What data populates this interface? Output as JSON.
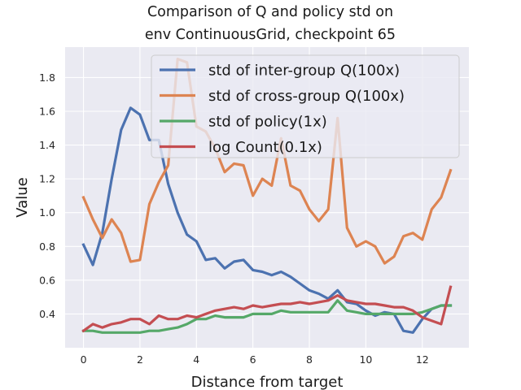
{
  "chart_data": {
    "type": "line",
    "title_line1": "Comparison of Q and policy std on",
    "title_line2": "env ContinuousGrid, checkpoint 65",
    "xlabel": "Distance from target",
    "ylabel": "Value",
    "xlim": [
      -0.65,
      13.65
    ],
    "ylim": [
      0.2,
      1.98
    ],
    "xticks": [
      0,
      2,
      4,
      6,
      8,
      10,
      12
    ],
    "yticks": [
      0.4,
      0.6,
      0.8,
      1.0,
      1.2,
      1.4,
      1.6,
      1.8
    ],
    "grid": true,
    "legend_position": "top-right",
    "x": [
      0,
      0.333,
      0.667,
      1.0,
      1.333,
      1.667,
      2.0,
      2.333,
      2.667,
      3.0,
      3.333,
      3.667,
      4.0,
      4.333,
      4.667,
      5.0,
      5.333,
      5.667,
      6.0,
      6.333,
      6.667,
      7.0,
      7.333,
      7.667,
      8.0,
      8.333,
      8.667,
      9.0,
      9.333,
      9.667,
      10.0,
      10.333,
      10.667,
      11.0,
      11.333,
      11.667,
      12.0,
      12.333,
      12.667,
      13.0
    ],
    "series": [
      {
        "name": "std of inter-group Q(100x)",
        "color": "#4c72b0",
        "values": [
          0.81,
          0.69,
          0.88,
          1.2,
          1.49,
          1.62,
          1.58,
          1.43,
          1.43,
          1.17,
          1.0,
          0.87,
          0.83,
          0.72,
          0.73,
          0.67,
          0.71,
          0.72,
          0.66,
          0.65,
          0.63,
          0.65,
          0.62,
          0.58,
          0.54,
          0.52,
          0.49,
          0.54,
          0.47,
          0.46,
          0.42,
          0.39,
          0.41,
          0.4,
          0.3,
          0.29,
          0.37,
          0.43,
          0.45,
          0.45
        ]
      },
      {
        "name": "std of cross-group Q(100x)",
        "color": "#dd8452",
        "values": [
          1.09,
          0.96,
          0.85,
          0.96,
          0.88,
          0.71,
          0.72,
          1.05,
          1.18,
          1.28,
          1.91,
          1.89,
          1.51,
          1.48,
          1.38,
          1.24,
          1.29,
          1.28,
          1.1,
          1.2,
          1.16,
          1.44,
          1.16,
          1.13,
          1.02,
          0.95,
          1.02,
          1.56,
          0.91,
          0.8,
          0.83,
          0.8,
          0.7,
          0.74,
          0.86,
          0.88,
          0.84,
          1.02,
          1.09,
          1.25
        ]
      },
      {
        "name": "std of policy(1x)",
        "color": "#55a868",
        "values": [
          0.3,
          0.3,
          0.29,
          0.29,
          0.29,
          0.29,
          0.29,
          0.3,
          0.3,
          0.31,
          0.32,
          0.34,
          0.37,
          0.37,
          0.39,
          0.38,
          0.38,
          0.38,
          0.4,
          0.4,
          0.4,
          0.42,
          0.41,
          0.41,
          0.41,
          0.41,
          0.41,
          0.48,
          0.42,
          0.41,
          0.4,
          0.4,
          0.4,
          0.4,
          0.4,
          0.4,
          0.41,
          0.43,
          0.45,
          0.45
        ]
      },
      {
        "name": "log Count(0.1x)",
        "color": "#c44e52",
        "values": [
          0.3,
          0.34,
          0.32,
          0.34,
          0.35,
          0.37,
          0.37,
          0.34,
          0.39,
          0.37,
          0.37,
          0.39,
          0.38,
          0.4,
          0.42,
          0.43,
          0.44,
          0.43,
          0.45,
          0.44,
          0.45,
          0.46,
          0.46,
          0.47,
          0.46,
          0.47,
          0.48,
          0.51,
          0.48,
          0.47,
          0.46,
          0.46,
          0.45,
          0.44,
          0.44,
          0.42,
          0.38,
          0.36,
          0.34,
          0.56
        ]
      }
    ]
  }
}
